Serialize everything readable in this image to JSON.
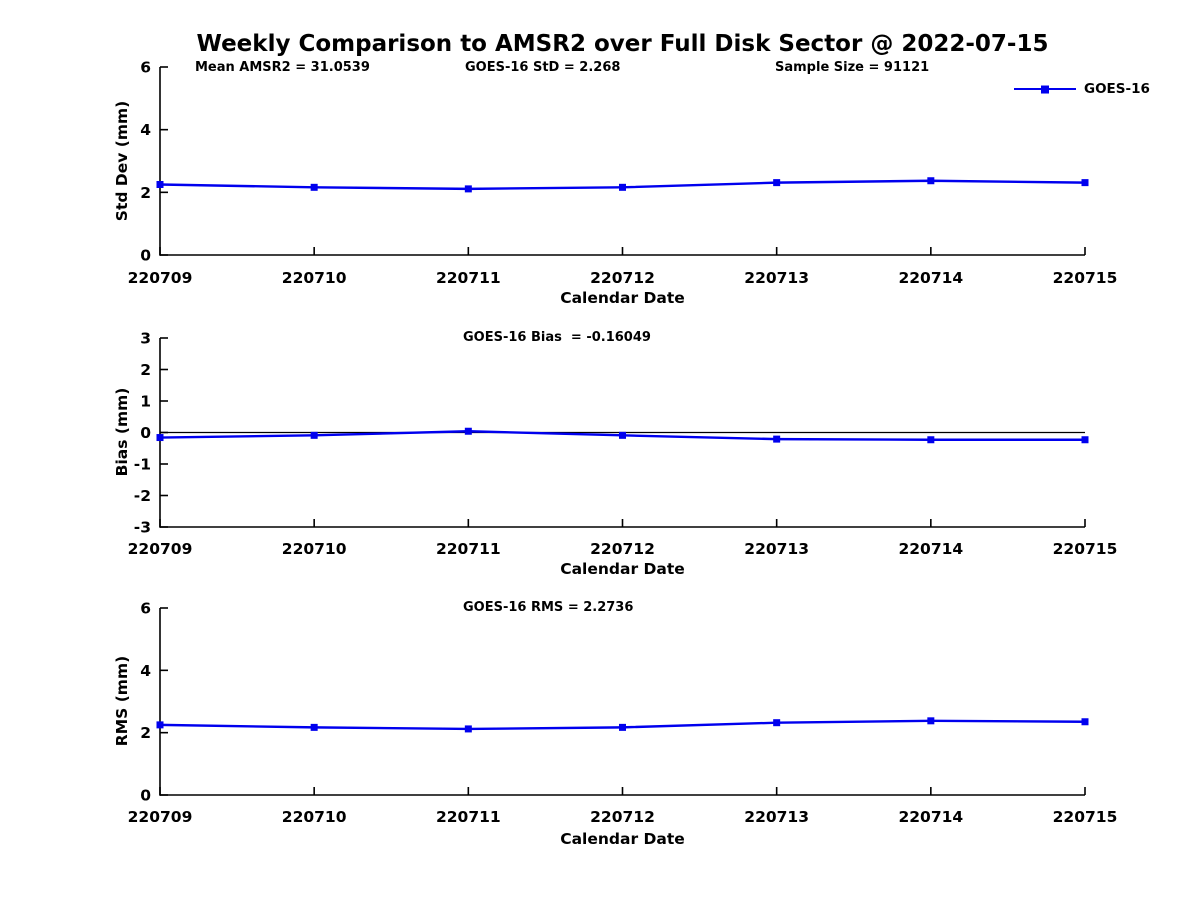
{
  "title": "Weekly Comparison to AMSR2 over Full Disk Sector @ 2022-07-15",
  "colors": {
    "line": "#0000EE",
    "axis": "#000000",
    "zero_line": "#000000",
    "background": "#ffffff",
    "text": "#000000"
  },
  "legend": {
    "label": "GOES-16",
    "position": "top-right"
  },
  "x_axis": {
    "label": "Calendar Date",
    "categories": [
      "220709",
      "220710",
      "220711",
      "220712",
      "220713",
      "220714",
      "220715"
    ]
  },
  "chart_data": [
    {
      "type": "line",
      "title": "",
      "ylabel": "Std Dev (mm)",
      "xlabel": "Calendar Date",
      "ylim": [
        0,
        6
      ],
      "yticks": [
        0,
        2,
        4,
        6
      ],
      "grid": false,
      "categories": [
        "220709",
        "220710",
        "220711",
        "220712",
        "220713",
        "220714",
        "220715"
      ],
      "series": [
        {
          "name": "GOES-16",
          "values": [
            2.25,
            2.16,
            2.11,
            2.16,
            2.31,
            2.37,
            2.31
          ]
        }
      ],
      "annotations": [
        "Mean AMSR2 = 31.0539",
        "GOES-16 StD = 2.268",
        "Sample Size = 91121"
      ]
    },
    {
      "type": "line",
      "title": "",
      "ylabel": "Bias (mm)",
      "xlabel": "Calendar Date",
      "ylim": [
        -3,
        3
      ],
      "yticks": [
        -3,
        -2,
        -1,
        0,
        1,
        2,
        3
      ],
      "grid": false,
      "zero_line": true,
      "categories": [
        "220709",
        "220710",
        "220711",
        "220712",
        "220713",
        "220714",
        "220715"
      ],
      "series": [
        {
          "name": "GOES-16",
          "values": [
            -0.16,
            -0.09,
            0.04,
            -0.09,
            -0.21,
            -0.23,
            -0.23
          ]
        }
      ],
      "annotations": [
        "GOES-16 Bias  = -0.16049"
      ]
    },
    {
      "type": "line",
      "title": "",
      "ylabel": "RMS (mm)",
      "xlabel": "Calendar Date",
      "ylim": [
        0,
        6
      ],
      "yticks": [
        0,
        2,
        4,
        6
      ],
      "grid": false,
      "categories": [
        "220709",
        "220710",
        "220711",
        "220712",
        "220713",
        "220714",
        "220715"
      ],
      "series": [
        {
          "name": "GOES-16",
          "values": [
            2.25,
            2.17,
            2.12,
            2.17,
            2.32,
            2.38,
            2.35
          ]
        }
      ],
      "annotations": [
        "GOES-16 RMS = 2.2736"
      ]
    }
  ]
}
